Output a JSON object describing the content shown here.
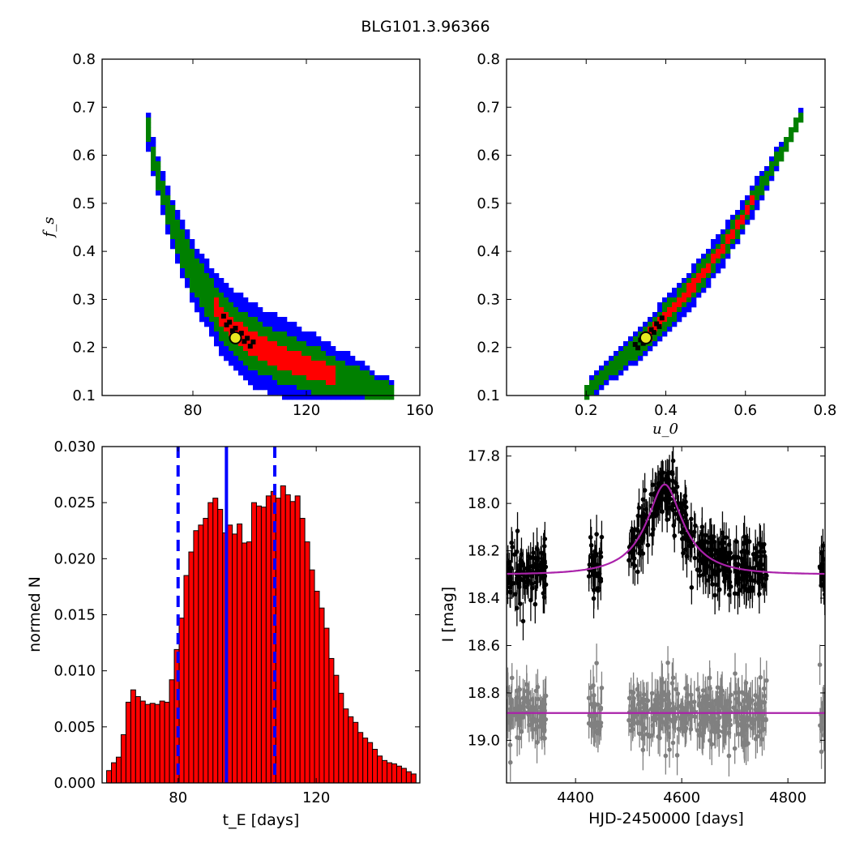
{
  "figure": {
    "title": "BLG101.3.96366"
  },
  "chart_data": [
    {
      "type": "heatmap",
      "panel": "top-left",
      "xlabel": "",
      "ylabel": "f_s",
      "xlim": [
        48,
        160
      ],
      "ylim": [
        0.1,
        0.8
      ],
      "xticks": [
        80,
        120,
        160
      ],
      "xtick_labels": [
        "80",
        "120",
        "160"
      ],
      "yticks": [
        0.1,
        0.2,
        0.3,
        0.4,
        0.5,
        0.6,
        0.7,
        0.8
      ],
      "ytick_labels": [
        "0.1",
        "0.2",
        "0.3",
        "0.4",
        "0.5",
        "0.6",
        "0.7",
        "0.8"
      ],
      "colors": {
        "outer": "#0000ff",
        "middle": "#008000",
        "inner": "#ff0000",
        "core": "#000000",
        "marker": "#e8e820"
      },
      "curve": [
        [
          63,
          0.7
        ],
        [
          65,
          0.62
        ],
        [
          68,
          0.55
        ],
        [
          72,
          0.47
        ],
        [
          76,
          0.41
        ],
        [
          80,
          0.355
        ],
        [
          85,
          0.31
        ],
        [
          90,
          0.265
        ],
        [
          95,
          0.235
        ],
        [
          100,
          0.21
        ],
        [
          110,
          0.182
        ],
        [
          120,
          0.16
        ],
        [
          130,
          0.14
        ],
        [
          140,
          0.125
        ],
        [
          150,
          0.1
        ]
      ],
      "best_fit": {
        "x": 95,
        "y": 0.22
      }
    },
    {
      "type": "heatmap",
      "panel": "top-right",
      "xlabel": "u_0",
      "ylabel": "",
      "xlim": [
        0.0,
        0.8
      ],
      "ylim": [
        0.1,
        0.8
      ],
      "xticks": [
        0.2,
        0.4,
        0.6,
        0.8
      ],
      "xtick_labels": [
        "0.2",
        "0.4",
        "0.6",
        "0.8"
      ],
      "yticks": [
        0.1,
        0.2,
        0.3,
        0.4,
        0.5,
        0.6,
        0.7,
        0.8
      ],
      "ytick_labels": [
        "0.1",
        "0.2",
        "0.3",
        "0.4",
        "0.5",
        "0.6",
        "0.7",
        "0.8"
      ],
      "colors": {
        "outer": "#0000ff",
        "middle": "#008000",
        "inner": "#ff0000",
        "core": "#000000",
        "marker": "#e8e820"
      },
      "curve": [
        [
          0.19,
          0.1
        ],
        [
          0.25,
          0.145
        ],
        [
          0.3,
          0.185
        ],
        [
          0.35,
          0.22
        ],
        [
          0.4,
          0.265
        ],
        [
          0.45,
          0.31
        ],
        [
          0.5,
          0.36
        ],
        [
          0.55,
          0.415
        ],
        [
          0.6,
          0.48
        ],
        [
          0.65,
          0.55
        ],
        [
          0.7,
          0.62
        ],
        [
          0.75,
          0.7
        ]
      ],
      "best_fit": {
        "x": 0.35,
        "y": 0.22
      }
    },
    {
      "type": "bar",
      "panel": "bottom-left",
      "xlabel": "t_E  [days]",
      "ylabel": "normed N",
      "xlim": [
        58,
        150
      ],
      "ylim": [
        0.0,
        0.03
      ],
      "xticks": [
        80,
        120
      ],
      "xtick_labels": [
        "80",
        "120"
      ],
      "yticks": [
        0.0,
        0.005,
        0.01,
        0.015,
        0.02,
        0.025,
        0.03
      ],
      "ytick_labels": [
        "0.000",
        "0.005",
        "0.010",
        "0.015",
        "0.020",
        "0.025",
        "0.030"
      ],
      "bin_start": 59.3,
      "bin_width": 1.4,
      "values": [
        0.0011,
        0.0018,
        0.0023,
        0.0043,
        0.0072,
        0.0083,
        0.0077,
        0.0073,
        0.007,
        0.0071,
        0.007,
        0.0073,
        0.0072,
        0.0092,
        0.0119,
        0.0147,
        0.0185,
        0.0206,
        0.0225,
        0.023,
        0.0236,
        0.025,
        0.0254,
        0.0244,
        0.0223,
        0.023,
        0.0222,
        0.0231,
        0.0214,
        0.0215,
        0.025,
        0.0247,
        0.0246,
        0.0256,
        0.026,
        0.0254,
        0.0265,
        0.0257,
        0.0251,
        0.0256,
        0.0236,
        0.0215,
        0.019,
        0.0171,
        0.0156,
        0.0138,
        0.0111,
        0.0096,
        0.008,
        0.0066,
        0.0059,
        0.0054,
        0.0045,
        0.004,
        0.0036,
        0.003,
        0.0024,
        0.002,
        0.0018,
        0.0017,
        0.0015,
        0.0013,
        0.001,
        0.0008,
        0.0006,
        0.0006,
        0.0005,
        0.0004,
        0.0003,
        0.0002,
        0.0001
      ],
      "bar_color": "#ff0000",
      "median_line": 94,
      "ci_lines": [
        80,
        108
      ],
      "line_color": "#0000ff"
    },
    {
      "type": "scatter",
      "panel": "bottom-right",
      "xlabel": "HJD-2450000 [days]",
      "ylabel": "I [mag]",
      "xlim": [
        4270,
        4870
      ],
      "ylim": [
        19.18,
        17.76
      ],
      "xticks": [
        4400,
        4600,
        4800
      ],
      "xtick_labels": [
        "4400",
        "4600",
        "4800"
      ],
      "yticks": [
        17.8,
        18.0,
        18.2,
        18.4,
        18.6,
        18.8,
        19.0
      ],
      "ytick_labels": [
        "17.8",
        "18.0",
        "18.2",
        "18.4",
        "18.6",
        "18.8",
        "19.0"
      ],
      "model": {
        "t0": 4568,
        "baseline": 18.3,
        "peak": 17.92,
        "tE": 94,
        "u0": 0.35,
        "color": "#aa22aa"
      },
      "residual_baseline": 18.885,
      "data_color": "#000000",
      "residual_color": "#808080",
      "segments": [
        [
          4270,
          4345
        ],
        [
          4425,
          4450
        ],
        [
          4500,
          4760
        ],
        [
          4860,
          4870
        ]
      ]
    }
  ]
}
